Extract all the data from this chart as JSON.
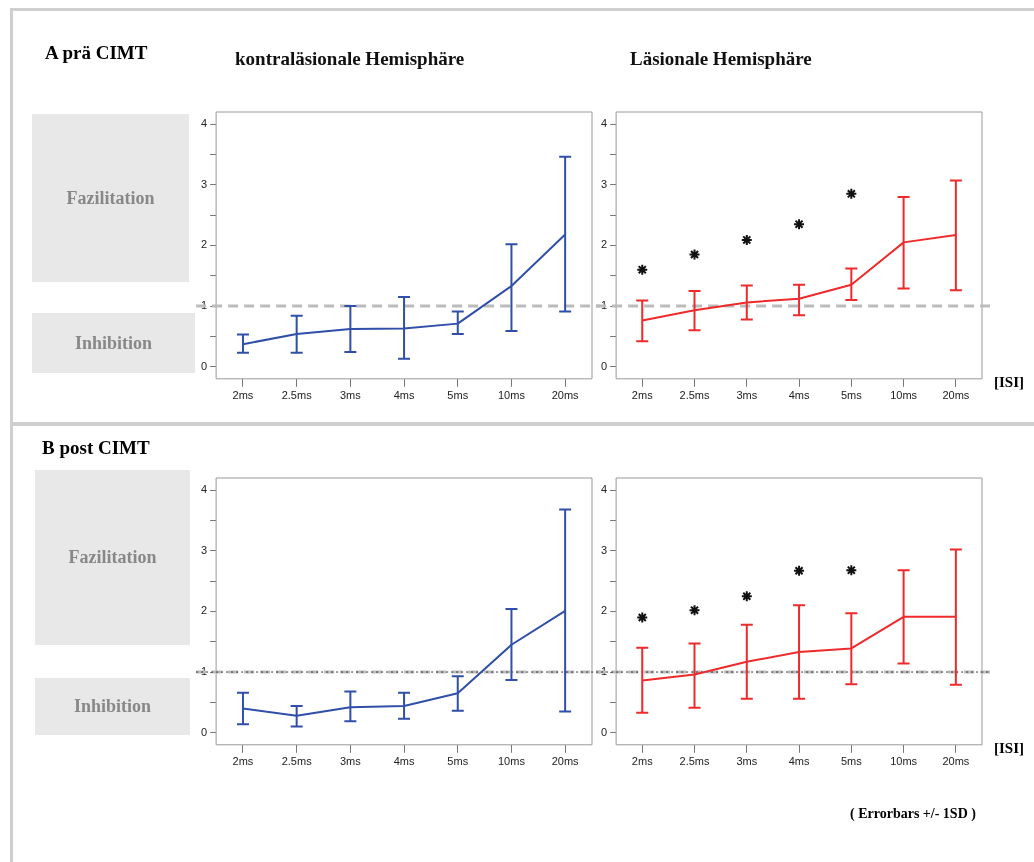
{
  "chart_data": [
    {
      "type": "line",
      "title": "kontraläsionale Hemisphäre",
      "categories": [
        "2ms",
        "2.5ms",
        "3ms",
        "4ms",
        "5ms",
        "10ms",
        "20ms"
      ],
      "series": [
        {
          "color": "#2f4fa8",
          "values": [
            0.37,
            0.54,
            0.62,
            0.63,
            0.71,
            1.33,
            2.18
          ],
          "errors": [
            [
              0.23,
              0.53
            ],
            [
              0.23,
              0.84
            ],
            [
              0.24,
              1.0
            ],
            [
              0.13,
              1.15
            ],
            [
              0.54,
              0.91
            ],
            [
              0.59,
              2.02
            ],
            [
              0.91,
              3.46
            ]
          ]
        }
      ],
      "ylim": [
        -0.2,
        4.2
      ],
      "yticks": [
        0,
        {
          "value": 0.5,
          "label": null
        },
        1,
        {
          "value": 1.5,
          "label": null
        },
        2,
        {
          "value": 2.5,
          "label": null
        },
        3,
        {
          "value": 3.5,
          "label": null
        },
        4
      ],
      "ref_lines": [
        {
          "axis": "y",
          "value": 1,
          "color": "#bbbbbb",
          "line_style": "dashed"
        }
      ],
      "annotations": [
        "A prä CIMT",
        "Fazilitation",
        "Inhibition"
      ],
      "legend": false,
      "grid": false,
      "marker": "none",
      "line_style": "solid"
    },
    {
      "type": "line",
      "title": "Läsionale Hemisphäre",
      "xlabel": "[ISI]",
      "categories": [
        "2ms",
        "2.5ms",
        "3ms",
        "4ms",
        "5ms",
        "10ms",
        "20ms"
      ],
      "series": [
        {
          "color": "#ee2a2a",
          "values": [
            0.76,
            0.93,
            1.06,
            1.12,
            1.35,
            2.05,
            2.17
          ],
          "errors": [
            [
              0.42,
              1.09
            ],
            [
              0.6,
              1.25
            ],
            [
              0.78,
              1.34
            ],
            [
              0.85,
              1.35
            ],
            [
              1.1,
              1.62
            ],
            [
              1.29,
              2.8
            ],
            [
              1.26,
              3.07
            ]
          ]
        },
        {
          "type": "scatter",
          "marker": "cross",
          "color": "#111111",
          "values": [
            1.6,
            1.85,
            2.09,
            2.35,
            2.85,
            null,
            null
          ]
        }
      ],
      "ylim": [
        -0.2,
        4.2
      ],
      "yticks": [
        0,
        {
          "value": 0.5,
          "label": null
        },
        1,
        {
          "value": 1.5,
          "label": null
        },
        2,
        {
          "value": 2.5,
          "label": null
        },
        3,
        {
          "value": 3.5,
          "label": null
        },
        4
      ],
      "ref_lines": [
        {
          "axis": "y",
          "value": 1,
          "color": "#bbbbbb",
          "line_style": "dashed"
        }
      ],
      "legend": false,
      "grid": false,
      "marker": "none",
      "line_style": "solid"
    },
    {
      "type": "line",
      "categories": [
        "2ms",
        "2.5ms",
        "3ms",
        "4ms",
        "5ms",
        "10ms",
        "20ms"
      ],
      "series": [
        {
          "color": "#2f4fa8",
          "values": [
            0.4,
            0.28,
            0.42,
            0.44,
            0.65,
            1.45,
            2.01
          ],
          "errors": [
            [
              0.14,
              0.66
            ],
            [
              0.1,
              0.44
            ],
            [
              0.19,
              0.68
            ],
            [
              0.23,
              0.66
            ],
            [
              0.36,
              0.93
            ],
            [
              0.87,
              2.04
            ],
            [
              0.35,
              3.68
            ]
          ]
        }
      ],
      "ylim": [
        -0.2,
        4.2
      ],
      "yticks": [
        0,
        {
          "value": 0.5,
          "label": null
        },
        1,
        {
          "value": 1.5,
          "label": null
        },
        2,
        {
          "value": 2.5,
          "label": null
        },
        3,
        {
          "value": 3.5,
          "label": null
        },
        4
      ],
      "ref_lines": [
        {
          "axis": "y",
          "value": 1,
          "color": "#bbbbbb",
          "line_style": "dashed"
        },
        {
          "axis": "y",
          "value": 1,
          "color": "#333333",
          "line_style": "dotted"
        }
      ],
      "annotations": [
        "B post CIMT",
        "Fazilitation",
        "Inhibition"
      ],
      "legend": false,
      "grid": false,
      "marker": "none",
      "line_style": "solid"
    },
    {
      "type": "line",
      "xlabel": "[ISI]",
      "categories": [
        "2ms",
        "2.5ms",
        "3ms",
        "4ms",
        "5ms",
        "10ms",
        "20ms"
      ],
      "series": [
        {
          "color": "#ee2a2a",
          "values": [
            0.86,
            0.96,
            1.17,
            1.33,
            1.39,
            1.91,
            1.91
          ],
          "errors": [
            [
              0.33,
              1.4
            ],
            [
              0.41,
              1.47
            ],
            [
              0.56,
              1.78
            ],
            [
              0.56,
              2.1
            ],
            [
              0.8,
              1.97
            ],
            [
              1.14,
              2.68
            ],
            [
              0.79,
              3.02
            ]
          ]
        },
        {
          "type": "scatter",
          "marker": "cross",
          "color": "#111111",
          "values": [
            1.9,
            2.02,
            2.25,
            2.67,
            2.68,
            null,
            null
          ]
        }
      ],
      "ylim": [
        -0.2,
        4.2
      ],
      "yticks": [
        0,
        {
          "value": 0.5,
          "label": null
        },
        1,
        {
          "value": 1.5,
          "label": null
        },
        2,
        {
          "value": 2.5,
          "label": null
        },
        3,
        {
          "value": 3.5,
          "label": null
        },
        4
      ],
      "ref_lines": [
        {
          "axis": "y",
          "value": 1,
          "color": "#bbbbbb",
          "line_style": "dashed"
        },
        {
          "axis": "y",
          "value": 1,
          "color": "#333333",
          "line_style": "dotted"
        }
      ],
      "annotations": [
        "( Errorbars +/- 1SD )"
      ],
      "legend": false,
      "grid": false,
      "marker": "none",
      "line_style": "solid"
    }
  ]
}
